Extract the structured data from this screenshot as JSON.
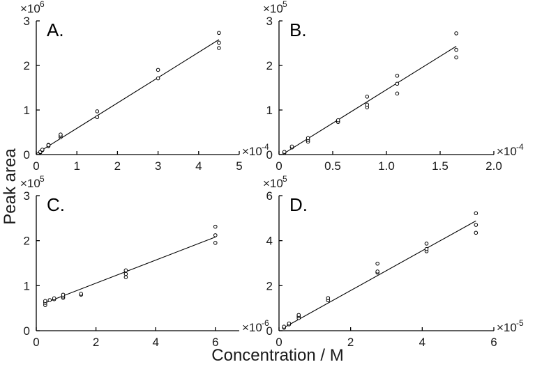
{
  "xlabel": "Concentration / M",
  "ylabel": "Peak area",
  "chart_data": [
    {
      "type": "scatter",
      "panel_label": "A.",
      "x_multiplier": "×10",
      "x_exponent": "-4",
      "y_multiplier": "×10",
      "y_exponent": "6",
      "xlim": [
        0,
        5
      ],
      "ylim": [
        0,
        3
      ],
      "xticks": [
        0,
        1,
        2,
        3,
        4,
        5
      ],
      "xtick_labels": [
        "0",
        "1",
        "2",
        "3",
        "4",
        "5"
      ],
      "yticks": [
        0,
        1,
        2,
        3
      ],
      "ytick_labels": [
        "0",
        "1",
        "2",
        "3"
      ],
      "points": [
        [
          0.1,
          0.05
        ],
        [
          0.1,
          0.06
        ],
        [
          0.15,
          0.1
        ],
        [
          0.15,
          0.11
        ],
        [
          0.3,
          0.19
        ],
        [
          0.3,
          0.22
        ],
        [
          0.3,
          0.21
        ],
        [
          0.6,
          0.39
        ],
        [
          0.6,
          0.42
        ],
        [
          0.6,
          0.45
        ],
        [
          1.5,
          0.84
        ],
        [
          1.5,
          0.97
        ],
        [
          3.0,
          1.71
        ],
        [
          3.0,
          1.9
        ],
        [
          4.5,
          2.39
        ],
        [
          4.5,
          2.51
        ],
        [
          4.5,
          2.73
        ]
      ],
      "fit": [
        [
          0.0,
          0.02
        ],
        [
          4.5,
          2.58
        ]
      ]
    },
    {
      "type": "scatter",
      "panel_label": "B.",
      "x_multiplier": "×10",
      "x_exponent": "-4",
      "y_multiplier": "×10",
      "y_exponent": "5",
      "xlim": [
        0,
        2.0
      ],
      "ylim": [
        0,
        3
      ],
      "xticks": [
        0,
        0.5,
        1.0,
        1.5,
        2.0
      ],
      "xtick_labels": [
        "0",
        "0.5",
        "1.0",
        "1.5",
        "2.0"
      ],
      "yticks": [
        0,
        1,
        2,
        3
      ],
      "ytick_labels": [
        "0",
        "1",
        "2",
        "3"
      ],
      "points": [
        [
          0.05,
          0.04
        ],
        [
          0.05,
          0.06
        ],
        [
          0.12,
          0.16
        ],
        [
          0.12,
          0.18
        ],
        [
          0.27,
          0.29
        ],
        [
          0.27,
          0.33
        ],
        [
          0.27,
          0.37
        ],
        [
          0.55,
          0.73
        ],
        [
          0.55,
          0.77
        ],
        [
          0.82,
          1.06
        ],
        [
          0.82,
          1.12
        ],
        [
          0.82,
          1.3
        ],
        [
          1.1,
          1.37
        ],
        [
          1.1,
          1.59
        ],
        [
          1.1,
          1.77
        ],
        [
          1.65,
          2.18
        ],
        [
          1.65,
          2.35
        ],
        [
          1.65,
          2.72
        ]
      ],
      "fit": [
        [
          0.05,
          0.03
        ],
        [
          1.65,
          2.43
        ]
      ]
    },
    {
      "type": "scatter",
      "panel_label": "C.",
      "x_multiplier": "×10",
      "x_exponent": "-6",
      "y_multiplier": "×10",
      "y_exponent": "5",
      "xlim": [
        0,
        6.8
      ],
      "ylim": [
        0,
        3
      ],
      "xticks": [
        0,
        2,
        4,
        6
      ],
      "xtick_labels": [
        "0",
        "2",
        "4",
        "6"
      ],
      "yticks": [
        0,
        1,
        2,
        3
      ],
      "ytick_labels": [
        "0",
        "1",
        "2",
        "3"
      ],
      "points": [
        [
          0.3,
          0.57
        ],
        [
          0.3,
          0.62
        ],
        [
          0.3,
          0.66
        ],
        [
          0.45,
          0.68
        ],
        [
          0.6,
          0.7
        ],
        [
          0.6,
          0.72
        ],
        [
          0.9,
          0.73
        ],
        [
          0.9,
          0.76
        ],
        [
          0.9,
          0.8
        ],
        [
          1.5,
          0.8
        ],
        [
          1.5,
          0.82
        ],
        [
          3.0,
          1.19
        ],
        [
          3.0,
          1.26
        ],
        [
          3.0,
          1.34
        ],
        [
          6.0,
          1.95
        ],
        [
          6.0,
          2.12
        ],
        [
          6.0,
          2.31
        ]
      ],
      "fit": [
        [
          0.3,
          0.62
        ],
        [
          6.0,
          2.08
        ]
      ]
    },
    {
      "type": "scatter",
      "panel_label": "D.",
      "x_multiplier": "×10",
      "x_exponent": "-5",
      "y_multiplier": "×10",
      "y_exponent": "5",
      "xlim": [
        0,
        6
      ],
      "ylim": [
        0,
        6
      ],
      "xticks": [
        0,
        2,
        4,
        6
      ],
      "xtick_labels": [
        "0",
        "2",
        "4",
        "6"
      ],
      "yticks": [
        0,
        2,
        4,
        6
      ],
      "ytick_labels": [
        "0",
        "2",
        "4",
        "6"
      ],
      "points": [
        [
          0.14,
          0.13
        ],
        [
          0.14,
          0.18
        ],
        [
          0.28,
          0.28
        ],
        [
          0.28,
          0.32
        ],
        [
          0.55,
          0.56
        ],
        [
          0.55,
          0.64
        ],
        [
          0.55,
          0.7
        ],
        [
          1.37,
          1.35
        ],
        [
          1.37,
          1.45
        ],
        [
          2.75,
          2.58
        ],
        [
          2.75,
          2.63
        ],
        [
          2.75,
          2.98
        ],
        [
          4.12,
          3.53
        ],
        [
          4.12,
          3.63
        ],
        [
          4.12,
          3.87
        ],
        [
          5.5,
          4.35
        ],
        [
          5.5,
          4.7
        ],
        [
          5.5,
          5.22
        ]
      ],
      "fit": [
        [
          0.14,
          0.14
        ],
        [
          5.5,
          4.88
        ]
      ]
    }
  ]
}
